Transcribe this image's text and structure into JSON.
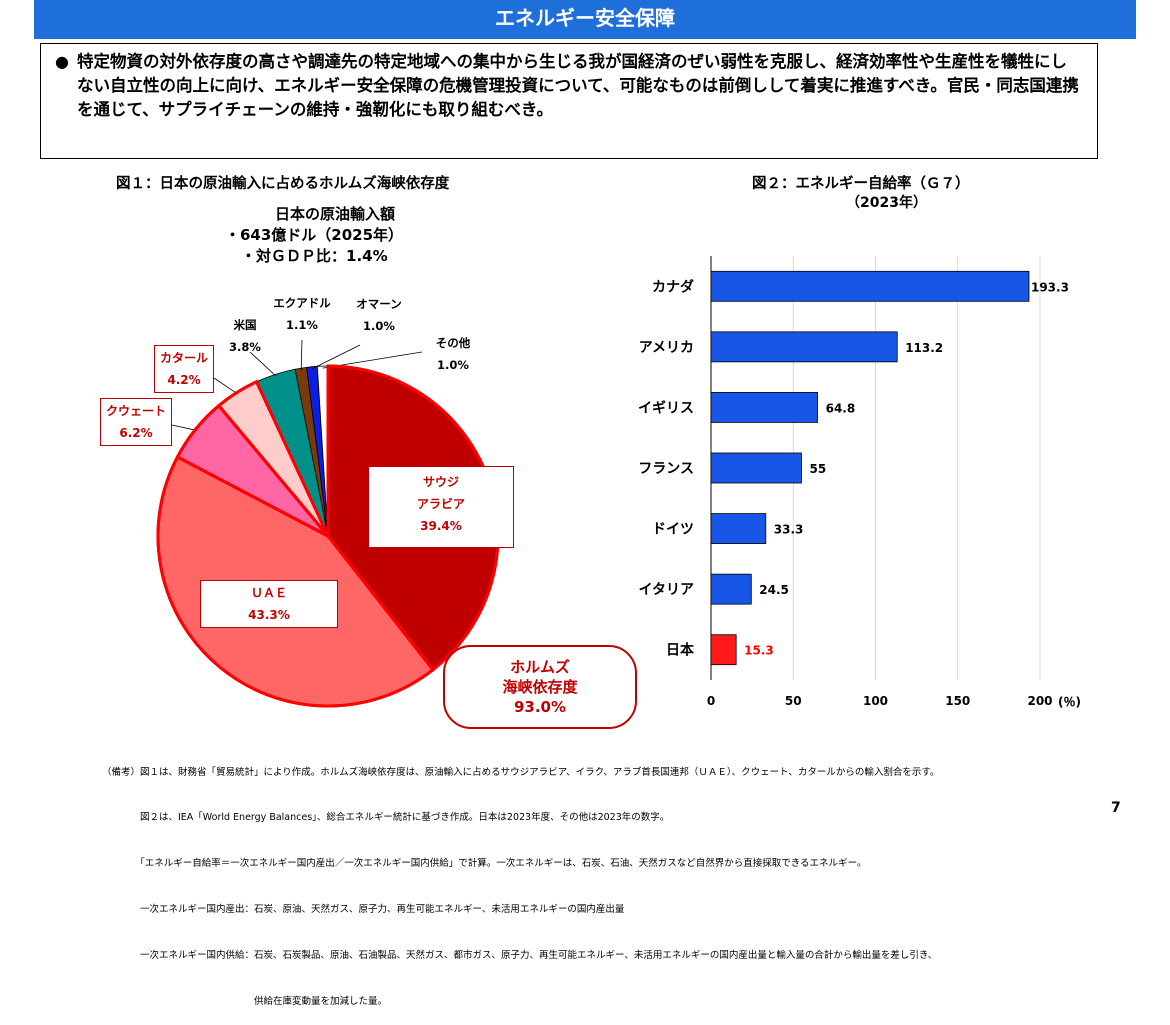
{
  "title": "エネルギー安全保障",
  "summary": {
    "bullet": "●",
    "text": "特定物資の対外依存度の高さや調達先の特定地域への集中から生じる我が国経済のぜい弱性を克服し、経済効率性や生産性を犠牲にしない自立性の向上に向け、エネルギー安全保障の危機管理投資について、可能なものは前倒しして着実に推進すべき。官民・同志国連携を通じて、サプライチェーンの維持・強靭化にも取り組むべき。"
  },
  "fig1": {
    "title": "図１：日本の原油輸入に占めるホルムズ海峡依存度",
    "note": {
      "line1": "日本の原油輸入額",
      "line2": "・643億ドル（2025年）",
      "line3": "・対ＧＤＰ比：1.4%"
    },
    "hormuz": {
      "line1": "ホルムズ",
      "line2": "海峡依存度",
      "line3": "93.0%"
    }
  },
  "fig2": {
    "title_line1": "図２：エネルギー自給率（Ｇ７）",
    "title_line2": "（2023年）",
    "unit": "(％)"
  },
  "chart_data": [
    {
      "type": "pie",
      "title": "図１：日本の原油輸入に占めるホルムズ海峡依存度",
      "slices": [
        {
          "label": "サウジアラビア",
          "display": [
            "サウジ",
            "アラビア"
          ],
          "value": 39.4,
          "value_text": "39.4%",
          "color": "#c00000"
        },
        {
          "label": "ＵＡＥ",
          "display": [
            "ＵＡＥ"
          ],
          "value": 43.3,
          "value_text": "43.3%",
          "color": "#ff6666"
        },
        {
          "label": "クウェート",
          "display": [
            "クウェート"
          ],
          "value": 6.2,
          "value_text": "6.2%",
          "color": "#ff66a3"
        },
        {
          "label": "カタール",
          "display": [
            "カタール"
          ],
          "value": 4.2,
          "value_text": "4.2%",
          "color": "#ffcccc"
        },
        {
          "label": "米国",
          "display": [
            "米国"
          ],
          "value": 3.8,
          "value_text": "3.8%",
          "color": "#00908a"
        },
        {
          "label": "エクアドル",
          "display": [
            "エクアドル"
          ],
          "value": 1.1,
          "value_text": "1.1%",
          "color": "#7a3a10"
        },
        {
          "label": "オマーン",
          "display": [
            "オマーン"
          ],
          "value": 1.0,
          "value_text": "1.0%",
          "color": "#0a1fe0"
        },
        {
          "label": "その他",
          "display": [
            "その他"
          ],
          "value": 1.0,
          "value_text": "1.0%",
          "color": "#ffffff"
        }
      ]
    },
    {
      "type": "bar",
      "orientation": "horizontal",
      "title": "図２：エネルギー自給率（Ｇ７）（2023年）",
      "categories": [
        "カナダ",
        "アメリカ",
        "イギリス",
        "フランス",
        "ドイツ",
        "イタリア",
        "日本"
      ],
      "values": [
        193.3,
        113.2,
        64.8,
        55,
        33.3,
        24.5,
        15.3
      ],
      "value_labels": [
        "193.3",
        "113.2",
        "64.8",
        "55",
        "33.3",
        "24.5",
        "15.3"
      ],
      "colors": [
        "#1756e6",
        "#1756e6",
        "#1756e6",
        "#1756e6",
        "#1756e6",
        "#1756e6",
        "#ff1a1a"
      ],
      "xlim": [
        0,
        200
      ],
      "xticks": [
        "0",
        "50",
        "100",
        "150",
        "200"
      ],
      "xunit": "(％)",
      "grid": "vertical"
    }
  ],
  "footnotes": [
    "（備考）図１は、財務省「貿易統計」により作成。ホルムズ海峡依存度は、原油輸入に占めるサウジアラビア、イラク、アラブ首長国連邦（ＵＡＥ）、クウェート、カタールからの輸入割合を示す。",
    "　　　　図２は、IEA「World Energy Balances」、総合エネルギー統計に基づき作成。日本は2023年度、その他は2023年の数字。",
    "　　　　「エネルギー自給率＝一次エネルギー国内産出／一次エネルギー国内供給」で計算。一次エネルギーは、石炭、石油、天然ガスなど自然界から直接採取できるエネルギー。",
    "　　　　一次エネルギー国内産出：石炭、原油、天然ガス、原子力、再生可能エネルギー、未活用エネルギーの国内産出量",
    "　　　　一次エネルギー国内供給：石炭、石炭製品、原油、石油製品、天然ガス、都市ガス、原子力、再生可能エネルギー、未活用エネルギーの国内産出量と輸入量の合計から輸出量を差し引き、",
    "　　　　　　　　　　　　　　　　供給在庫変動量を加減した量。"
  ],
  "page_number": "7"
}
